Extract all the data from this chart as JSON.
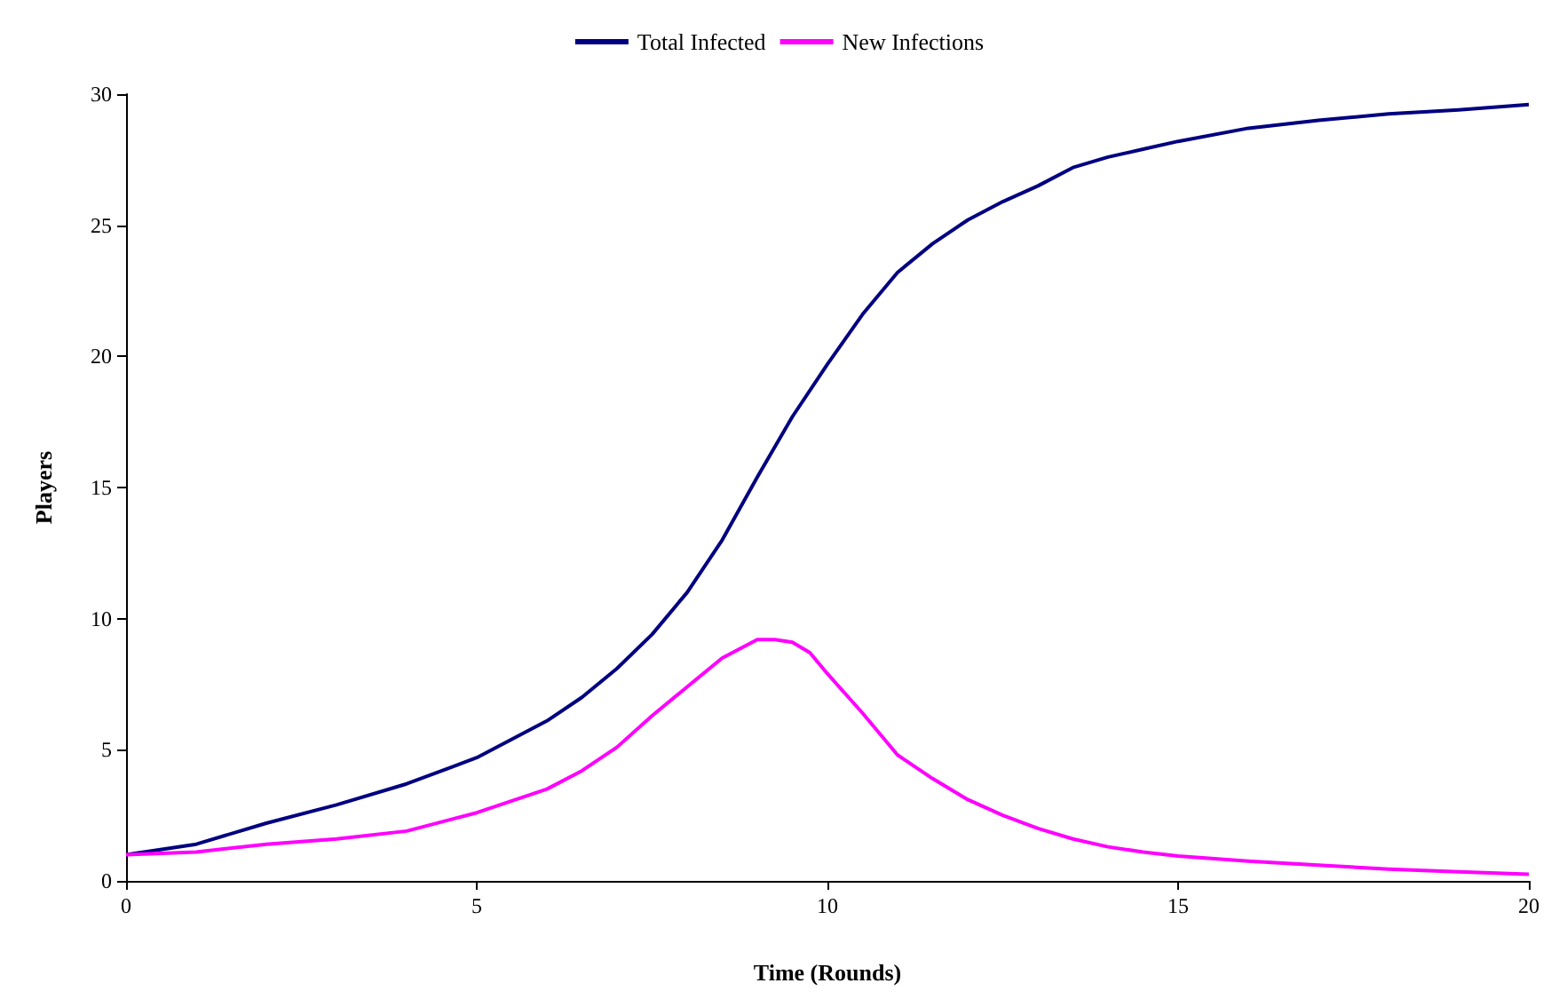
{
  "chart_data": {
    "type": "line",
    "xlabel": "Time (Rounds)",
    "ylabel": "Players",
    "xlim": [
      0,
      20
    ],
    "xticks": [
      0,
      5,
      10,
      15,
      20
    ],
    "ylim": [
      0,
      30
    ],
    "yticks": [
      0,
      5,
      10,
      15,
      20,
      25,
      30
    ],
    "grid": false,
    "legend": "top",
    "marker": "none",
    "line_style": "solid",
    "series": [
      {
        "name": "Total Infected",
        "color": "#000080",
        "x": [
          0,
          1,
          2,
          3,
          4,
          5,
          6,
          6.5,
          7,
          7.5,
          8,
          8.5,
          9,
          9.5,
          10,
          10.5,
          11,
          11.5,
          12,
          12.5,
          13,
          13.5,
          14,
          14.5,
          15,
          16,
          17,
          18,
          19,
          20
        ],
        "values": [
          1.0,
          1.4,
          2.2,
          2.9,
          3.7,
          4.7,
          6.1,
          7.0,
          8.1,
          9.4,
          11.0,
          13.0,
          15.4,
          17.7,
          19.7,
          21.6,
          23.2,
          24.3,
          25.2,
          25.9,
          26.5,
          27.2,
          27.6,
          27.9,
          28.2,
          28.7,
          29.0,
          29.25,
          29.4,
          29.6
        ]
      },
      {
        "name": "New Infections",
        "color": "#ff00ff",
        "x": [
          0,
          1,
          2,
          3,
          4,
          5,
          6,
          6.5,
          7,
          7.5,
          8,
          8.5,
          9,
          9.25,
          9.5,
          9.75,
          10,
          10.5,
          11,
          11.5,
          12,
          12.5,
          13,
          13.5,
          14,
          14.5,
          15,
          16,
          17,
          18,
          19,
          20
        ],
        "values": [
          1.0,
          1.1,
          1.4,
          1.6,
          1.9,
          2.6,
          3.5,
          4.2,
          5.1,
          6.3,
          7.4,
          8.5,
          9.2,
          9.2,
          9.1,
          8.7,
          7.9,
          6.4,
          4.8,
          3.9,
          3.1,
          2.5,
          2.0,
          1.6,
          1.3,
          1.1,
          0.95,
          0.75,
          0.6,
          0.45,
          0.35,
          0.25
        ]
      }
    ]
  }
}
